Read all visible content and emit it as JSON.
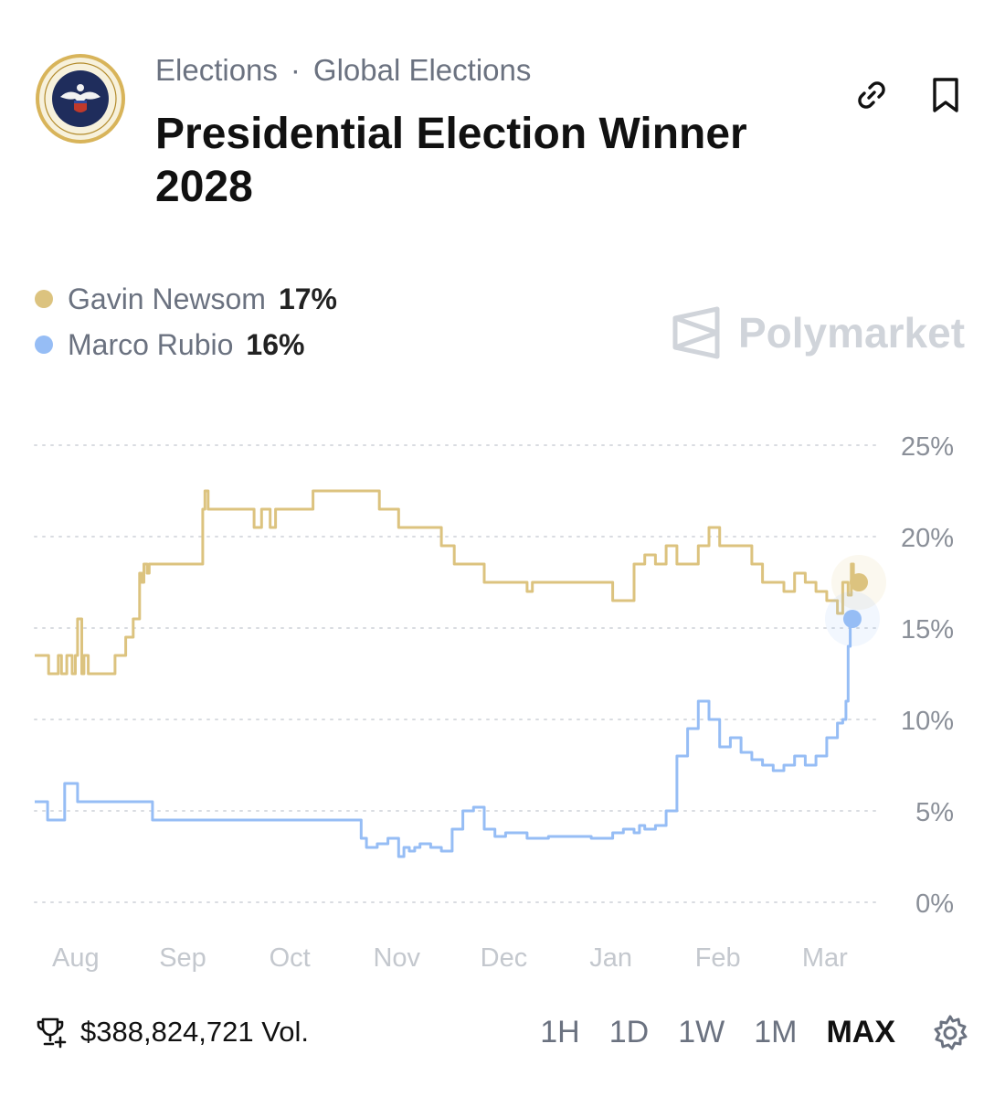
{
  "header": {
    "breadcrumbs": [
      "Elections",
      "Global Elections"
    ],
    "separator": "·",
    "title": "Presidential Election Winner 2028",
    "icons": [
      "link-icon",
      "bookmark-icon"
    ]
  },
  "legend": [
    {
      "name": "Gavin Newsom",
      "value": "17%",
      "color": "#dcc37f"
    },
    {
      "name": "Marco Rubio",
      "value": "16%",
      "color": "#96bdf5"
    }
  ],
  "brand": {
    "name": "Polymarket",
    "icon": "polymarket-logo-icon"
  },
  "footer": {
    "volume": "$388,824,721 Vol.",
    "volume_icon": "trophy-icon",
    "ranges": [
      "1H",
      "1D",
      "1W",
      "1M",
      "MAX"
    ],
    "active_range": "MAX",
    "settings_icon": "gear-icon"
  },
  "chart_data": {
    "type": "line",
    "title": "Presidential Election Winner 2028",
    "xlabel": "",
    "ylabel": "",
    "xlim": [
      0,
      7.7
    ],
    "ylim": [
      0,
      25
    ],
    "y_ticks": [
      0,
      5,
      10,
      15,
      20,
      25
    ],
    "y_tick_labels": [
      "0%",
      "5%",
      "10%",
      "15%",
      "20%",
      "25%"
    ],
    "x_ticks": [
      0.4,
      1.4,
      2.4,
      3.4,
      4.4,
      5.4,
      6.4,
      7.4
    ],
    "x_tick_labels": [
      "Aug",
      "Sep",
      "Oct",
      "Nov",
      "Dec",
      "Jan",
      "Feb",
      "Mar"
    ],
    "grid": true,
    "series": [
      {
        "name": "Gavin Newsom",
        "color": "#dcc37f",
        "x": [
          0.0,
          0.12,
          0.13,
          0.22,
          0.25,
          0.3,
          0.35,
          0.38,
          0.4,
          0.44,
          0.46,
          0.5,
          0.54,
          0.58,
          0.7,
          0.75,
          0.8,
          0.85,
          0.92,
          0.98,
          1.0,
          1.02,
          1.05,
          1.07,
          1.5,
          1.57,
          1.59,
          1.62,
          1.66,
          2.0,
          2.05,
          2.1,
          2.12,
          2.2,
          2.25,
          2.52,
          2.6,
          2.68,
          3.18,
          3.22,
          3.3,
          3.4,
          3.7,
          3.8,
          3.92,
          4.1,
          4.2,
          4.3,
          4.6,
          4.65,
          4.7,
          5.2,
          5.4,
          5.5,
          5.6,
          5.7,
          5.8,
          5.9,
          6.0,
          6.2,
          6.3,
          6.4,
          6.5,
          6.7,
          6.8,
          6.9,
          7.0,
          7.1,
          7.2,
          7.3,
          7.4,
          7.5,
          7.55,
          7.6,
          7.63,
          7.65,
          7.7
        ],
        "values": [
          13.5,
          13.5,
          12.5,
          13.5,
          12.5,
          13.5,
          12.5,
          13.5,
          15.5,
          12.5,
          13.5,
          12.5,
          12.5,
          12.5,
          12.5,
          13.5,
          13.5,
          14.5,
          15.5,
          18.0,
          17.5,
          18.5,
          18.0,
          18.5,
          18.5,
          21.5,
          22.5,
          21.5,
          21.5,
          21.5,
          20.5,
          20.5,
          21.5,
          20.5,
          21.5,
          21.5,
          22.5,
          22.5,
          22.5,
          21.5,
          21.5,
          20.5,
          20.5,
          19.5,
          18.5,
          18.5,
          17.5,
          17.5,
          17.0,
          17.5,
          17.5,
          17.5,
          16.5,
          16.5,
          18.5,
          19.0,
          18.5,
          19.5,
          18.5,
          19.5,
          20.5,
          19.5,
          19.5,
          18.5,
          17.5,
          17.5,
          17.0,
          18.0,
          17.5,
          17.0,
          16.5,
          15.8,
          17.5,
          16.8,
          18.5,
          17.5,
          17.5
        ]
      },
      {
        "name": "Marco Rubio",
        "color": "#96bdf5",
        "x": [
          0.0,
          0.1,
          0.12,
          0.2,
          0.28,
          0.32,
          0.4,
          0.45,
          0.48,
          0.9,
          1.0,
          1.1,
          1.15,
          1.3,
          1.5,
          1.8,
          2.0,
          2.3,
          2.6,
          2.8,
          2.9,
          3.0,
          3.05,
          3.1,
          3.2,
          3.3,
          3.4,
          3.45,
          3.5,
          3.55,
          3.6,
          3.7,
          3.8,
          3.9,
          4.0,
          4.1,
          4.2,
          4.3,
          4.4,
          4.6,
          4.8,
          5.0,
          5.2,
          5.4,
          5.5,
          5.55,
          5.6,
          5.65,
          5.7,
          5.8,
          5.9,
          6.0,
          6.1,
          6.2,
          6.3,
          6.4,
          6.5,
          6.6,
          6.7,
          6.8,
          6.9,
          7.0,
          7.1,
          7.2,
          7.3,
          7.4,
          7.5,
          7.55,
          7.58,
          7.6,
          7.62,
          7.64
        ],
        "values": [
          5.5,
          5.5,
          4.5,
          4.5,
          6.5,
          6.5,
          5.5,
          5.5,
          5.5,
          5.5,
          5.5,
          4.5,
          4.5,
          4.5,
          4.5,
          4.5,
          4.5,
          4.5,
          4.5,
          4.5,
          4.5,
          4.5,
          3.5,
          3.0,
          3.2,
          3.5,
          2.5,
          3.0,
          2.8,
          3.0,
          3.2,
          3.0,
          2.8,
          4.0,
          5.0,
          5.2,
          4.0,
          3.6,
          3.8,
          3.5,
          3.6,
          3.6,
          3.5,
          3.8,
          4.0,
          4.0,
          3.8,
          4.2,
          4.0,
          4.2,
          5.0,
          8.0,
          9.5,
          11.0,
          10.0,
          8.5,
          9.0,
          8.2,
          7.8,
          7.5,
          7.2,
          7.5,
          8.0,
          7.5,
          8.0,
          9.0,
          9.8,
          10.0,
          11.0,
          14.0,
          15.2,
          15.5
        ]
      }
    ],
    "end_labels": [
      "17%",
      "16%"
    ]
  }
}
